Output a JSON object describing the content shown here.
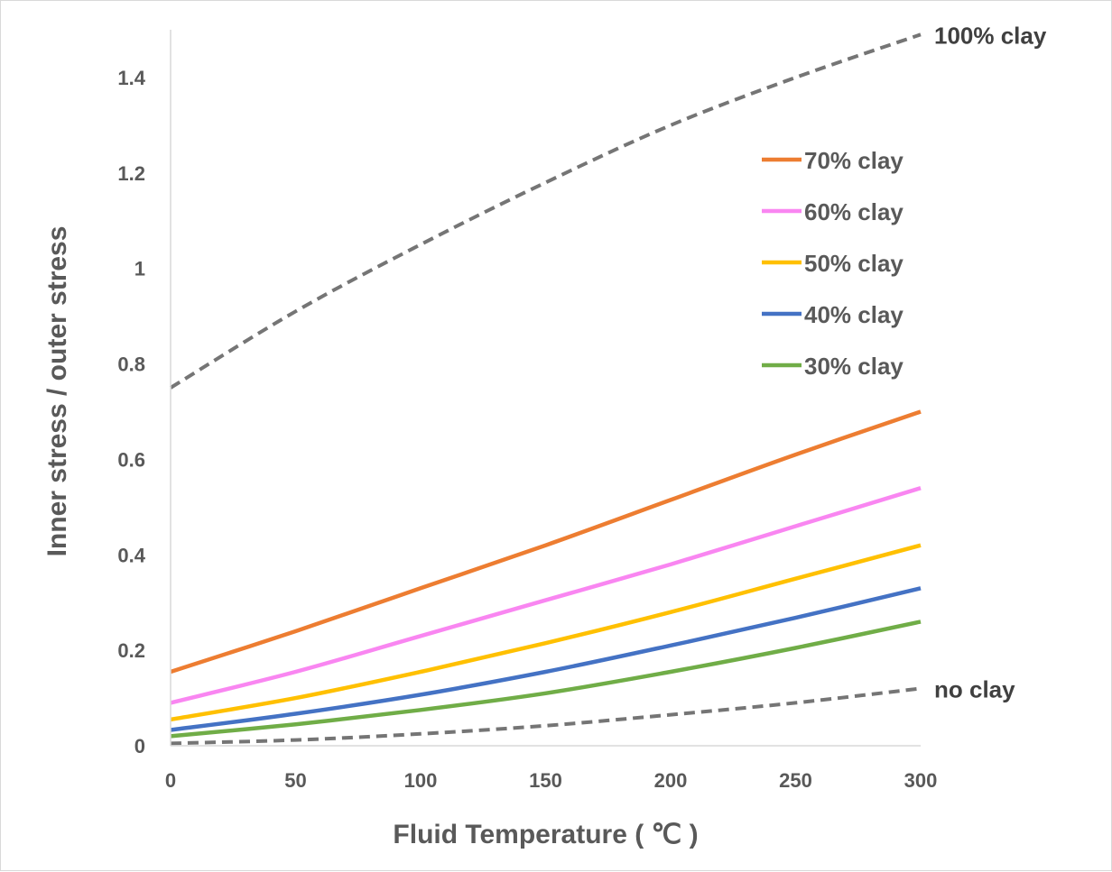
{
  "chart_data": {
    "type": "line",
    "title": "",
    "xlabel": "Fluid Temperature ( ℃ )",
    "ylabel": "Inner stress / outer stress",
    "xlim": [
      0,
      300
    ],
    "ylim": [
      0,
      1.5
    ],
    "xticks": [
      "0",
      "50",
      "100",
      "150",
      "200",
      "250",
      "300"
    ],
    "yticks": [
      "0",
      "0.2",
      "0.4",
      "0.6",
      "0.8",
      "1",
      "1.2",
      "1.4"
    ],
    "legend_position": "upper-right inside plot",
    "x": [
      0,
      50,
      100,
      150,
      200,
      250,
      300
    ],
    "series": [
      {
        "name": "100% clay",
        "color": "#757575",
        "dash": "dashed",
        "label_at_end": true,
        "values": [
          0.75,
          0.91,
          1.05,
          1.18,
          1.3,
          1.4,
          1.49
        ]
      },
      {
        "name": "70% clay",
        "color": "#ed7d31",
        "dash": "solid",
        "legend": true,
        "values": [
          0.155,
          0.24,
          0.33,
          0.42,
          0.515,
          0.61,
          0.7
        ]
      },
      {
        "name": "60% clay",
        "color": "#f986f1",
        "dash": "solid",
        "legend": true,
        "values": [
          0.09,
          0.155,
          0.23,
          0.305,
          0.38,
          0.46,
          0.54
        ]
      },
      {
        "name": "50% clay",
        "color": "#ffc000",
        "dash": "solid",
        "legend": true,
        "values": [
          0.055,
          0.1,
          0.155,
          0.215,
          0.28,
          0.35,
          0.42
        ]
      },
      {
        "name": "40% clay",
        "color": "#4472c4",
        "dash": "solid",
        "legend": true,
        "values": [
          0.033,
          0.067,
          0.107,
          0.155,
          0.21,
          0.268,
          0.33
        ]
      },
      {
        "name": "30% clay",
        "color": "#70ad47",
        "dash": "solid",
        "legend": true,
        "values": [
          0.02,
          0.045,
          0.075,
          0.11,
          0.155,
          0.205,
          0.26
        ]
      },
      {
        "name": "no clay",
        "color": "#757575",
        "dash": "dashed",
        "label_at_end": true,
        "values": [
          0.005,
          0.012,
          0.025,
          0.042,
          0.065,
          0.09,
          0.12
        ]
      }
    ]
  }
}
